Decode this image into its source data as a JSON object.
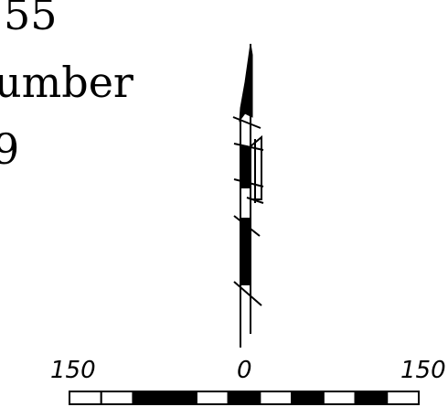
{
  "labels": {
    "line1": "55",
    "line2": "umber",
    "line3": "9"
  },
  "scale_bar": {
    "left_label": "150",
    "center_label": "0",
    "right_label": "150",
    "segments": [
      "white",
      "white",
      "black",
      "black",
      "white",
      "black",
      "white",
      "black",
      "white",
      "black",
      "white"
    ]
  },
  "colors": {
    "ink": "#000000",
    "paper": "#ffffff"
  }
}
